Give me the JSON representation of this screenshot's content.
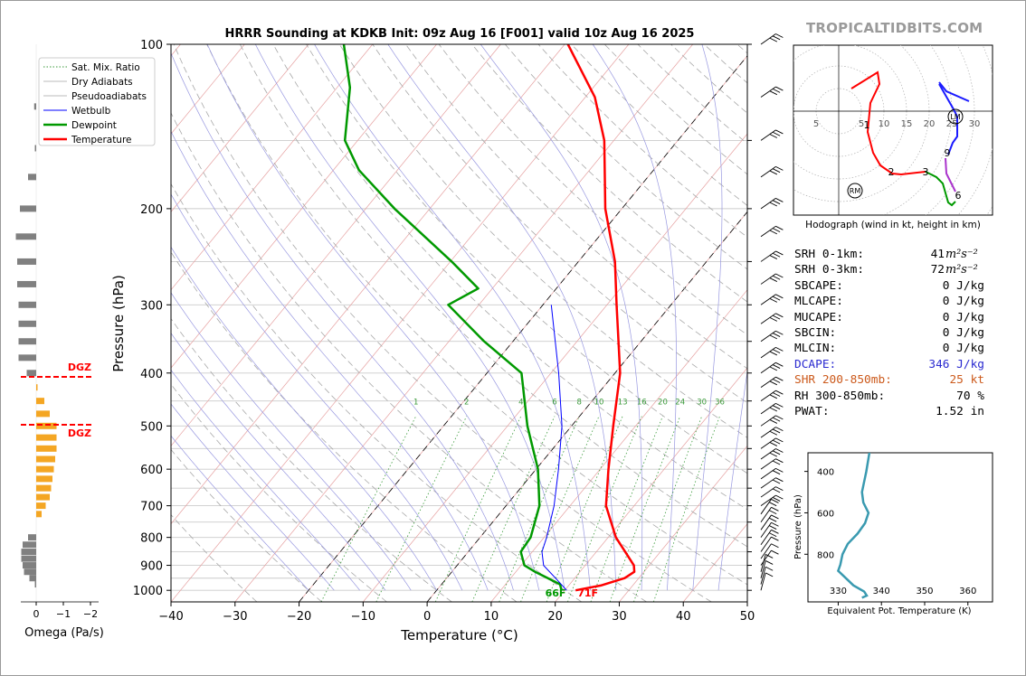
{
  "title": "HRRR Sounding at KDKB Init: 09z Aug 16 [F001] valid 10z Aug 16 2025",
  "watermark": "TROPICALTIDBITS.COM",
  "skewt": {
    "xlabel": "Temperature (°C)",
    "ylabel": "Pressure (hPa)",
    "xlim": [
      -40,
      50
    ],
    "ylim": [
      1050,
      100
    ],
    "xticks": [
      "−40",
      "−30",
      "−20",
      "−10",
      "0",
      "10",
      "20",
      "30",
      "40",
      "50"
    ],
    "yticks": [
      "100",
      "200",
      "300",
      "400",
      "500",
      "600",
      "700",
      "800",
      "900",
      "1000"
    ],
    "mixing_ratio_labels": [
      "1",
      "2",
      "4",
      "6",
      "8",
      "10",
      "13",
      "16",
      "20",
      "24",
      "30",
      "36"
    ],
    "surface_temp_label": "71F",
    "surface_dew_label": "66F",
    "legend": [
      "Sat. Mix. Ratio",
      "Dry Adiabats",
      "Pseudoadiabats",
      "Wetbulb",
      "Dewpoint",
      "Temperature"
    ]
  },
  "chart_data": {
    "type": "line",
    "title": "HRRR Sounding at KDKB Init: 09z Aug 16 [F001] valid 10z Aug 16 2025",
    "xlabel": "Temperature (°C)",
    "ylabel": "Pressure (hPa)",
    "y_scale": "log",
    "skew": true,
    "series": [
      {
        "name": "Temperature",
        "color": "#ff0000",
        "points": [
          [
            1000,
            21.7
          ],
          [
            980,
            25
          ],
          [
            950,
            27.8
          ],
          [
            925,
            28.5
          ],
          [
            900,
            27.6
          ],
          [
            850,
            24.5
          ],
          [
            800,
            21.2
          ],
          [
            700,
            15.6
          ],
          [
            600,
            11.3
          ],
          [
            500,
            6.5
          ],
          [
            400,
            0.8
          ],
          [
            300,
            -8.5
          ],
          [
            250,
            -14.3
          ],
          [
            200,
            -22.6
          ],
          [
            150,
            -31.5
          ],
          [
            125,
            -38.5
          ],
          [
            100,
            -49.5
          ]
        ]
      },
      {
        "name": "Dewpoint",
        "color": "#009900",
        "points": [
          [
            1000,
            19.5
          ],
          [
            975,
            18.5
          ],
          [
            950,
            15.8
          ],
          [
            925,
            13
          ],
          [
            900,
            10.5
          ],
          [
            850,
            8.2
          ],
          [
            800,
            7.9
          ],
          [
            700,
            5.2
          ],
          [
            600,
            0.3
          ],
          [
            500,
            -6.9
          ],
          [
            400,
            -14.6
          ],
          [
            350,
            -24.5
          ],
          [
            300,
            -34.8
          ],
          [
            280,
            -32.2
          ],
          [
            250,
            -39.8
          ],
          [
            200,
            -55.5
          ],
          [
            170,
            -66
          ],
          [
            150,
            -72
          ],
          [
            120,
            -78
          ],
          [
            100,
            -84.5
          ]
        ]
      },
      {
        "name": "Wetbulb",
        "color": "#0000ff",
        "points": [
          [
            1000,
            20.3
          ],
          [
            950,
            17
          ],
          [
            900,
            13.5
          ],
          [
            850,
            11.5
          ],
          [
            800,
            10.4
          ],
          [
            700,
            7.5
          ],
          [
            600,
            3.5
          ],
          [
            500,
            -1.5
          ],
          [
            400,
            -8.8
          ],
          [
            300,
            -18.7
          ]
        ]
      }
    ],
    "surface_temp_f": 71,
    "surface_dew_f": 66,
    "grid": true
  },
  "omega": {
    "xlabel": "Omega (Pa/s)",
    "xticks": [
      "0",
      "−1",
      "−2"
    ],
    "dgz_label": "DGZ",
    "colors": {
      "rising": "#f4a623",
      "sinking": "#808080"
    },
    "values": [
      {
        "p": 130,
        "w": 0.15
      },
      {
        "p": 155,
        "w": 0.1
      },
      {
        "p": 175,
        "w": 0.6
      },
      {
        "p": 200,
        "w": 1.2
      },
      {
        "p": 225,
        "w": 1.5
      },
      {
        "p": 250,
        "w": 1.4
      },
      {
        "p": 275,
        "w": 1.4
      },
      {
        "p": 300,
        "w": 1.3
      },
      {
        "p": 325,
        "w": 1.3
      },
      {
        "p": 350,
        "w": 1.3
      },
      {
        "p": 375,
        "w": 1.3
      },
      {
        "p": 400,
        "w": 0.7
      },
      {
        "p": 425,
        "w": -0.1
      },
      {
        "p": 450,
        "w": -0.6
      },
      {
        "p": 475,
        "w": -1.0
      },
      {
        "p": 500,
        "w": -1.5
      },
      {
        "p": 525,
        "w": -1.5
      },
      {
        "p": 550,
        "w": -1.5
      },
      {
        "p": 575,
        "w": -1.4
      },
      {
        "p": 600,
        "w": -1.3
      },
      {
        "p": 625,
        "w": -1.2
      },
      {
        "p": 650,
        "w": -1.1
      },
      {
        "p": 675,
        "w": -1.0
      },
      {
        "p": 700,
        "w": -0.7
      },
      {
        "p": 725,
        "w": -0.4
      },
      {
        "p": 800,
        "w": 0.6
      },
      {
        "p": 825,
        "w": 1.0
      },
      {
        "p": 850,
        "w": 1.1
      },
      {
        "p": 875,
        "w": 1.1
      },
      {
        "p": 900,
        "w": 1.0
      },
      {
        "p": 925,
        "w": 0.9
      },
      {
        "p": 950,
        "w": 0.5
      },
      {
        "p": 975,
        "w": 0.1
      }
    ]
  },
  "hodograph": {
    "caption": "Hodograph (wind in kt, height in km)",
    "ring_labels": [
      "5",
      "5",
      "10",
      "15",
      "20",
      "25",
      "30"
    ],
    "height_labels": [
      "1",
      "2",
      "3",
      "6",
      "9"
    ],
    "marker_labels": [
      "LM",
      "RM"
    ]
  },
  "indices": [
    {
      "label": "SRH 0-1km:",
      "value": "41",
      "unit": "m²s⁻²",
      "color": "#000000"
    },
    {
      "label": "SRH 0-3km:",
      "value": "72",
      "unit": "m²s⁻²",
      "color": "#000000"
    },
    {
      "label": "SBCAPE:",
      "value": "0 J/kg",
      "unit": "",
      "color": "#000000"
    },
    {
      "label": "MLCAPE:",
      "value": "0 J/kg",
      "unit": "",
      "color": "#000000"
    },
    {
      "label": "MUCAPE:",
      "value": "0 J/kg",
      "unit": "",
      "color": "#000000"
    },
    {
      "label": "SBCIN:",
      "value": "0 J/kg",
      "unit": "",
      "color": "#000000"
    },
    {
      "label": "MLCIN:",
      "value": "0 J/kg",
      "unit": "",
      "color": "#000000"
    },
    {
      "label": "DCAPE:",
      "value": "346 J/kg",
      "unit": "",
      "color": "#2a2ad0"
    },
    {
      "label": "SHR 200-850mb:",
      "value": "25 kt",
      "unit": "",
      "color": "#cc5a1c"
    },
    {
      "label": "RH 300-850mb:",
      "value": "70 %",
      "unit": "",
      "color": "#000000"
    },
    {
      "label": "PWAT:",
      "value": "1.52 in",
      "unit": "",
      "color": "#000000"
    }
  ],
  "theta_e": {
    "xlabel": "Equivalent Pot. Temperature (K)",
    "ylabel": "Pressure (hPa)",
    "xticks": [
      "330",
      "340",
      "350",
      "360"
    ],
    "yticks": [
      "400",
      "600",
      "800"
    ],
    "color": "#3a9ab0",
    "points": [
      [
        300,
        337.3
      ],
      [
        400,
        336.5
      ],
      [
        500,
        335.5
      ],
      [
        550,
        335.8
      ],
      [
        600,
        337
      ],
      [
        650,
        336.2
      ],
      [
        700,
        334.5
      ],
      [
        750,
        332.2
      ],
      [
        800,
        331
      ],
      [
        850,
        330.5
      ],
      [
        880,
        330
      ],
      [
        900,
        331
      ],
      [
        950,
        333.5
      ],
      [
        980,
        336
      ],
      [
        1000,
        336.6
      ],
      [
        1010,
        335.5
      ]
    ]
  }
}
